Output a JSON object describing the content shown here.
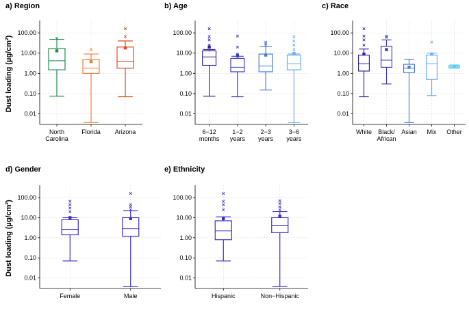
{
  "chart_data": [
    {
      "type": "box",
      "title": "a) Region",
      "ylabel": "Dust loading (µg/cm²)",
      "yscale": "log",
      "ylim": [
        0.003,
        300
      ],
      "yticks": [
        {
          "v": 0.01,
          "label": "0.01"
        },
        {
          "v": 0.1,
          "label": "0.10"
        },
        {
          "v": 1,
          "label": "1.00"
        },
        {
          "v": 10,
          "label": "10.00"
        },
        {
          "v": 100,
          "label": "100.00"
        }
      ],
      "boxes": [
        {
          "label": [
            "North",
            "Carolina"
          ],
          "color": "#1e8c4e",
          "min": 0.075,
          "q1": 1.5,
          "median": 4.2,
          "q3": 17,
          "max": 48,
          "mean": 13,
          "outliers": [
            55
          ]
        },
        {
          "label": [
            "Florida"
          ],
          "color": "#f07f3c",
          "min": 0.0037,
          "q1": 1.0,
          "median": 1.8,
          "q3": 4.8,
          "max": 9,
          "mean": 3.8,
          "outliers": [
            15
          ]
        },
        {
          "label": [
            "Arizona"
          ],
          "color": "#d94a1a",
          "min": 0.07,
          "q1": 1.8,
          "median": 4.0,
          "q3": 20,
          "max": 40,
          "mean": 18,
          "outliers": [
            65,
            160
          ]
        }
      ]
    },
    {
      "type": "box",
      "title": "b) Age",
      "ylabel": "",
      "yscale": "log",
      "ylim": [
        0.003,
        300
      ],
      "yticks": [
        {
          "v": 0.01,
          "label": "0.01"
        },
        {
          "v": 0.1,
          "label": "0.10"
        },
        {
          "v": 1,
          "label": "1.00"
        },
        {
          "v": 10,
          "label": "10.00"
        },
        {
          "v": 100,
          "label": "100.00"
        }
      ],
      "boxes": [
        {
          "label": [
            "6−12",
            "months"
          ],
          "color": "#3a1f9e",
          "min": 0.075,
          "q1": 2.5,
          "median": 6.5,
          "q3": 13,
          "max": 15,
          "mean": 20,
          "outliers": [
            25,
            45,
            65,
            160
          ]
        },
        {
          "label": [
            "1−2",
            "years"
          ],
          "color": "#3d3cc4",
          "min": 0.07,
          "q1": 1.2,
          "median": 2.0,
          "q3": 5.5,
          "max": 7,
          "mean": 7.5,
          "outliers": [
            8,
            9,
            20,
            70
          ]
        },
        {
          "label": [
            "2−3",
            "years"
          ],
          "color": "#4a7ad6",
          "min": 0.15,
          "q1": 1.2,
          "median": 2.3,
          "q3": 9,
          "max": 21,
          "mean": 8,
          "outliers": [
            25,
            30,
            35
          ]
        },
        {
          "label": [
            "3−6",
            "years"
          ],
          "color": "#6aaaf0",
          "min": 0.0037,
          "q1": 1.5,
          "median": 3.0,
          "q3": 8,
          "max": 9,
          "mean": 9.5,
          "outliers": [
            10,
            15,
            25,
            40,
            65
          ]
        }
      ]
    },
    {
      "type": "box",
      "title": "c) Race",
      "ylabel": "",
      "yscale": "log",
      "ylim": [
        0.003,
        300
      ],
      "yticks": [
        {
          "v": 0.01,
          "label": "0.01"
        },
        {
          "v": 0.1,
          "label": "0.10"
        },
        {
          "v": 1,
          "label": "1.00"
        },
        {
          "v": 10,
          "label": "10.00"
        },
        {
          "v": 100,
          "label": "100.00"
        }
      ],
      "boxes": [
        {
          "label": [
            "White"
          ],
          "color": "#3a1f9e",
          "min": 0.07,
          "q1": 1.3,
          "median": 3.0,
          "q3": 8,
          "max": 16,
          "mean": 9,
          "outliers": [
            25,
            45,
            70,
            160
          ]
        },
        {
          "label": [
            "Black/",
            "African"
          ],
          "color": "#3d3cc4",
          "min": 0.3,
          "q1": 2.0,
          "median": 4.5,
          "q3": 22,
          "max": 45,
          "mean": 15,
          "outliers": [
            60,
            70
          ]
        },
        {
          "label": [
            "Asian"
          ],
          "color": "#4a7ad6",
          "min": 0.0037,
          "q1": 1.1,
          "median": 1.8,
          "q3": 2.8,
          "max": 5,
          "mean": 2.0,
          "outliers": []
        },
        {
          "label": [
            "Mix"
          ],
          "color": "#6aaaf0",
          "min": 0.08,
          "q1": 0.5,
          "median": 3.0,
          "q3": 8,
          "max": 10,
          "mean": 9,
          "outliers": [
            35
          ]
        },
        {
          "label": [
            "Other"
          ],
          "color": "#5ccdf0",
          "min": 1.8,
          "q1": 1.9,
          "median": 2.1,
          "q3": 2.4,
          "max": 2.6,
          "mean": 2.1,
          "outliers": []
        }
      ]
    },
    {
      "type": "box",
      "title": "d) Gender",
      "ylabel": "Dust loading (µg/cm²)",
      "yscale": "log",
      "ylim": [
        0.003,
        300
      ],
      "yticks": [
        {
          "v": 0.01,
          "label": "0.01"
        },
        {
          "v": 0.1,
          "label": "0.10"
        },
        {
          "v": 1,
          "label": "1.00"
        },
        {
          "v": 10,
          "label": "10.00"
        },
        {
          "v": 100,
          "label": "100.00"
        }
      ],
      "boxes": [
        {
          "label": [
            "Female"
          ],
          "color": "#3d2ec2",
          "min": 0.07,
          "q1": 1.4,
          "median": 2.6,
          "q3": 8,
          "max": 10,
          "mean": 10,
          "outliers": [
            20,
            30,
            45,
            65
          ]
        },
        {
          "label": [
            "Male"
          ],
          "color": "#3d2ec2",
          "min": 0.0037,
          "q1": 1.2,
          "median": 2.8,
          "q3": 10,
          "max": 22,
          "mean": 9,
          "outliers": [
            25,
            35,
            45,
            160
          ]
        }
      ]
    },
    {
      "type": "box",
      "title": "e) Ethnicity",
      "ylabel": "",
      "yscale": "log",
      "ylim": [
        0.003,
        300
      ],
      "yticks": [
        {
          "v": 0.01,
          "label": "0.01"
        },
        {
          "v": 0.1,
          "label": "0.10"
        },
        {
          "v": 1,
          "label": "1.00"
        },
        {
          "v": 10,
          "label": "10.00"
        },
        {
          "v": 100,
          "label": "100.00"
        }
      ],
      "boxes": [
        {
          "label": [
            "Hispanic"
          ],
          "color": "#3d2ec2",
          "min": 0.07,
          "q1": 0.8,
          "median": 2.2,
          "q3": 7,
          "max": 11,
          "mean": 9,
          "outliers": [
            25,
            45,
            65,
            160
          ]
        },
        {
          "label": [
            "Non−Hispanic"
          ],
          "color": "#3d2ec2",
          "min": 0.0037,
          "q1": 1.8,
          "median": 4.2,
          "q3": 10,
          "max": 20,
          "mean": 12,
          "outliers": [
            25,
            35,
            50,
            70
          ]
        }
      ]
    }
  ]
}
